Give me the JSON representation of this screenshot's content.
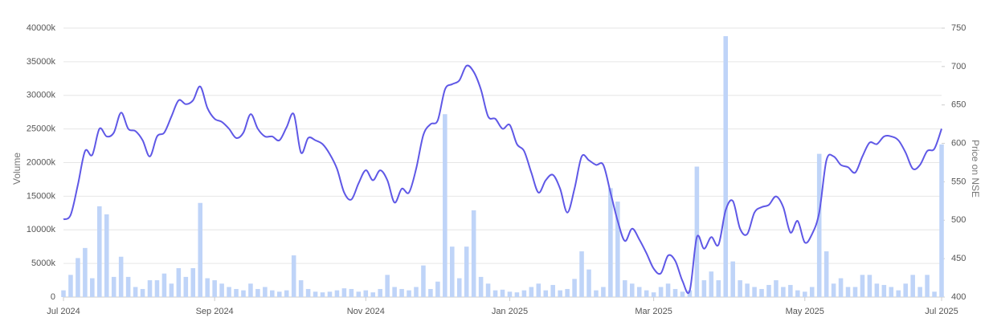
{
  "chart_data": {
    "type": "combo",
    "y_label": "Volume",
    "y2_label": "Price on NSE",
    "categories": [
      "Jul 2024",
      null,
      null,
      null,
      null,
      null,
      null,
      null,
      null,
      null,
      null,
      null,
      null,
      null,
      null,
      null,
      null,
      null,
      null,
      null,
      null,
      "Sep 2024",
      null,
      null,
      null,
      null,
      null,
      null,
      null,
      null,
      null,
      null,
      null,
      null,
      null,
      null,
      null,
      null,
      null,
      null,
      null,
      null,
      "Nov 2024",
      null,
      null,
      null,
      null,
      null,
      null,
      null,
      null,
      null,
      null,
      null,
      null,
      null,
      null,
      null,
      null,
      null,
      null,
      null,
      "Jan 2025",
      null,
      null,
      null,
      null,
      null,
      null,
      null,
      null,
      null,
      null,
      null,
      null,
      null,
      null,
      null,
      null,
      null,
      null,
      null,
      "Mar 2025",
      null,
      null,
      null,
      null,
      null,
      null,
      null,
      null,
      null,
      null,
      null,
      null,
      null,
      null,
      null,
      null,
      null,
      null,
      null,
      null,
      "May 2025",
      null,
      null,
      null,
      null,
      null,
      null,
      null,
      null,
      null,
      null,
      null,
      null,
      null,
      null,
      null,
      null,
      null,
      null,
      "Jul 2025"
    ],
    "series": [
      {
        "type": "bar",
        "color": "#bfd4f8",
        "values": [
          1000,
          3300,
          5800,
          7300,
          2800,
          13500,
          12300,
          3000,
          6000,
          3000,
          1500,
          1200,
          2500,
          2500,
          3500,
          2000,
          4300,
          3000,
          4300,
          14000,
          2800,
          2500,
          2000,
          1500,
          1200,
          1000,
          2000,
          1200,
          1500,
          1000,
          800,
          1000,
          6200,
          2500,
          1200,
          800,
          700,
          800,
          1000,
          1300,
          1200,
          800,
          1000,
          700,
          1200,
          3300,
          1500,
          1200,
          1000,
          1500,
          4700,
          1200,
          2300,
          27200,
          7500,
          2800,
          7500,
          12900,
          3000,
          2000,
          1000,
          1100,
          800,
          700,
          1000,
          1500,
          2000,
          1000,
          1800,
          1000,
          1200,
          2700,
          6800,
          4100,
          1000,
          1500,
          16200,
          14200,
          2500,
          2000,
          1500,
          1000,
          700,
          1500,
          2000,
          1200,
          800,
          1000,
          19400,
          2500,
          3800,
          2500,
          38800,
          5300,
          2500,
          2000,
          1500,
          1200,
          1800,
          2500,
          1500,
          1800,
          1000,
          800,
          1500,
          21300,
          6800,
          2000,
          2800,
          1500,
          1500,
          3300,
          3300,
          2000,
          1800,
          1500,
          1000,
          2000,
          3300,
          1500,
          3300,
          800,
          22700
        ]
      },
      {
        "type": "line",
        "axis": "y2",
        "color": "#5f58e6",
        "values": [
          501,
          507,
          546,
          590,
          585,
          619,
          609,
          614,
          640,
          619,
          616,
          604,
          583,
          609,
          614,
          635,
          656,
          651,
          656,
          674,
          646,
          632,
          628,
          619,
          607,
          614,
          638,
          619,
          609,
          609,
          604,
          621,
          638,
          588,
          607,
          604,
          599,
          586,
          567,
          536,
          527,
          548,
          565,
          552,
          565,
          552,
          523,
          541,
          536,
          567,
          611,
          625,
          630,
          670,
          677,
          682,
          701,
          693,
          670,
          635,
          632,
          619,
          624,
          599,
          590,
          562,
          536,
          552,
          559,
          541,
          510,
          541,
          583,
          578,
          572,
          572,
          536,
          499,
          473,
          489,
          475,
          457,
          437,
          431,
          454,
          447,
          421,
          408,
          478,
          463,
          478,
          468,
          513,
          525,
          489,
          482,
          510,
          517,
          520,
          531,
          517,
          484,
          499,
          471,
          482,
          510,
          578,
          583,
          572,
          569,
          562,
          583,
          601,
          599,
          609,
          609,
          604,
          588,
          567,
          572,
          590,
          593,
          619
        ]
      }
    ],
    "ylim": [
      0,
      40000
    ],
    "yticks": [
      0,
      {
        "value": 5000,
        "label": "5000k"
      },
      {
        "value": 10000,
        "label": "10000k"
      },
      {
        "value": 15000,
        "label": "15000k"
      },
      {
        "value": 20000,
        "label": "20000k"
      },
      {
        "value": 25000,
        "label": "25000k"
      },
      {
        "value": 30000,
        "label": "30000k"
      },
      {
        "value": 35000,
        "label": "35000k"
      },
      {
        "value": 40000,
        "label": "40000k"
      }
    ],
    "y2lim": [
      400,
      750
    ],
    "y2ticks": [
      400,
      450,
      500,
      550,
      600,
      650,
      700,
      750
    ],
    "grid": true
  }
}
